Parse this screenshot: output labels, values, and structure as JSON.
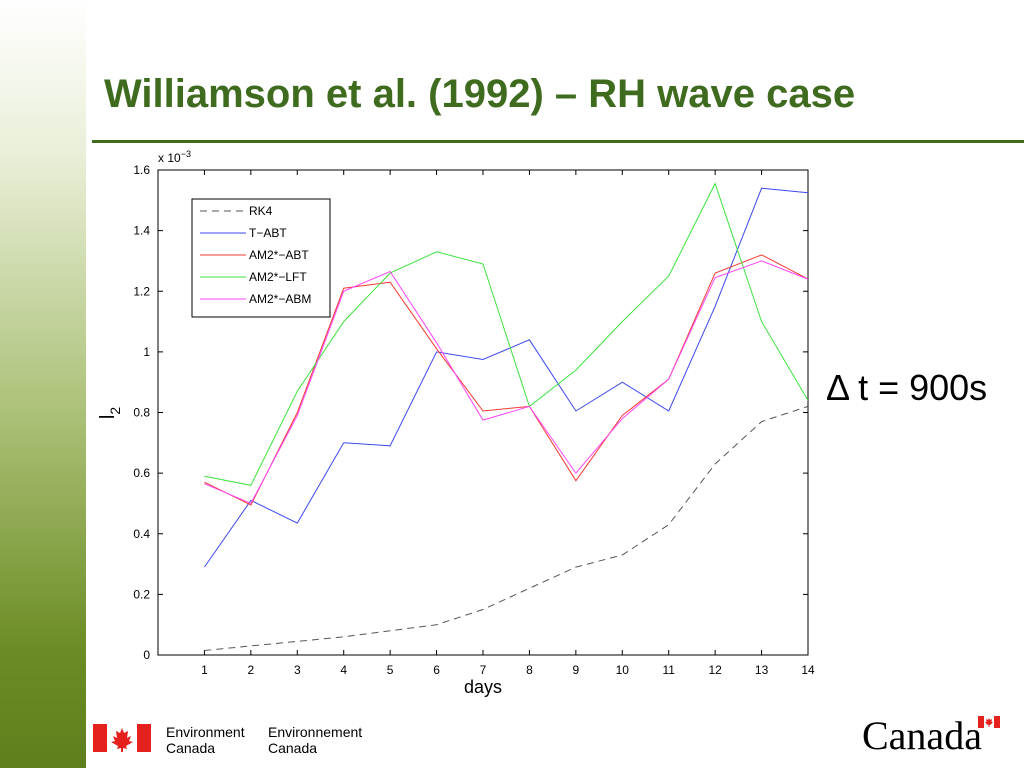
{
  "slide": {
    "title": "Williamson et al. (1992) – RH wave case",
    "annotation_symbol": "Δ",
    "annotation_text": " t = 900s"
  },
  "footer": {
    "dept_en_line1": "Environment",
    "dept_en_line2": "Canada",
    "dept_fr_line1": "Environnement",
    "dept_fr_line2": "Canada",
    "wordmark": "Canada"
  },
  "colors": {
    "title": "#3f6b1e",
    "flag_red": "#e4211c"
  },
  "chart_data": {
    "type": "line",
    "title": "",
    "xlabel": "days",
    "ylabel": "l",
    "ylabel_sub": "2",
    "y_multiplier": "x 10",
    "y_multiplier_exp": "−3",
    "xlim": [
      0,
      14
    ],
    "ylim": [
      0,
      1.6
    ],
    "x_ticks": [
      1,
      2,
      3,
      4,
      5,
      6,
      7,
      8,
      9,
      10,
      11,
      12,
      13,
      14
    ],
    "x_tick_labels": [
      "1",
      "2",
      "3",
      "4",
      "5",
      "6",
      "7",
      "8",
      "9",
      "10",
      "11",
      "12",
      "13",
      "14"
    ],
    "y_ticks": [
      0,
      0.2,
      0.4,
      0.6,
      0.8,
      1,
      1.2,
      1.4,
      1.6
    ],
    "y_tick_labels": [
      "0",
      "0.2",
      "0.4",
      "0.6",
      "0.8",
      "1",
      "1.2",
      "1.4",
      "1.6"
    ],
    "grid": false,
    "legend_position": "top-left",
    "x": [
      1,
      2,
      3,
      4,
      5,
      6,
      7,
      8,
      9,
      10,
      11,
      12,
      13,
      14
    ],
    "series": [
      {
        "name": "RK4",
        "color": "#555555",
        "dash": true,
        "values": [
          0.015,
          0.03,
          0.045,
          0.06,
          0.08,
          0.1,
          0.15,
          0.22,
          0.29,
          0.33,
          0.43,
          0.63,
          0.77,
          0.82
        ]
      },
      {
        "name": "T−ABT",
        "color": "#3b48ee",
        "dash": false,
        "values": [
          0.29,
          0.51,
          0.435,
          0.7,
          0.69,
          1.0,
          0.975,
          1.04,
          0.805,
          0.9,
          0.805,
          1.15,
          1.54,
          1.525
        ]
      },
      {
        "name": "AM2*−ABT",
        "color": "#f23a32",
        "dash": false,
        "values": [
          0.57,
          0.495,
          0.8,
          1.21,
          1.23,
          1.01,
          0.805,
          0.82,
          0.575,
          0.79,
          0.91,
          1.26,
          1.32,
          1.24
        ]
      },
      {
        "name": "AM2*−LFT",
        "color": "#3ee23e",
        "dash": false,
        "values": [
          0.59,
          0.56,
          0.87,
          1.1,
          1.26,
          1.33,
          1.29,
          0.82,
          0.94,
          1.1,
          1.25,
          1.555,
          1.1,
          0.84
        ]
      },
      {
        "name": "AM2*−ABM",
        "color": "#ff44ff",
        "dash": false,
        "values": [
          0.565,
          0.5,
          0.79,
          1.2,
          1.265,
          1.03,
          0.775,
          0.82,
          0.6,
          0.78,
          0.91,
          1.245,
          1.3,
          1.24
        ]
      }
    ]
  }
}
